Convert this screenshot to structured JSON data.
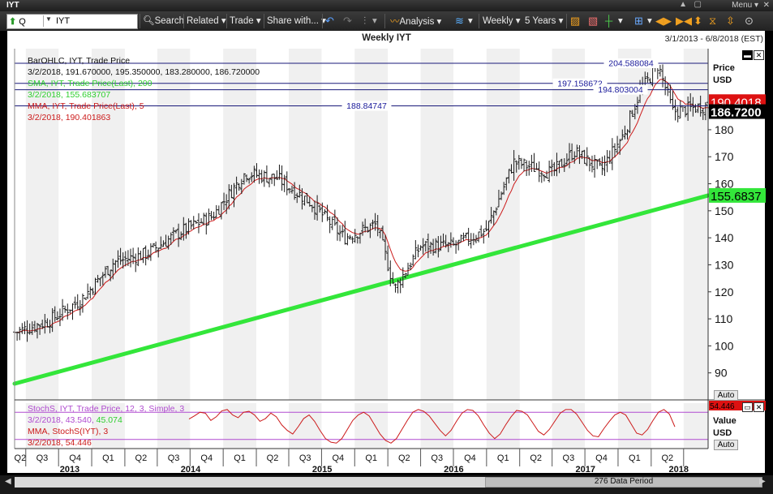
{
  "window": {
    "title": "IYT",
    "menu_label": "Menu"
  },
  "toolbar": {
    "symbol_type": "Q",
    "symbol_value": "IYT",
    "search_label": "Search",
    "related_label": "Related",
    "trade_label": "Trade",
    "share_label": "Share with...",
    "analysis_label": "Analysis",
    "frequency_label": "Weekly",
    "range_label": "5 Years"
  },
  "chart_header": {
    "title": "Weekly IYT",
    "date_range": "3/1/2013 - 6/8/2018 (EST)"
  },
  "legend": {
    "bar_title": "BarOHLC, IYT, Trade Price",
    "bar_values": "3/2/2018, 191.670000, 195.350000, 183.280000, 186.720000",
    "sma_title": "SMA, IYT, Trade Price(Last), 200",
    "sma_value": "3/2/2018, 155.683707",
    "mma_title": "MMA, IYT, Trade Price(Last), 5",
    "mma_value": "3/2/2018, 190.401863",
    "stoch_title": "StochS, IYT, Trade Price, 12, 3, Simple, 3",
    "stoch_value_a": "3/2/2018, 43.540,",
    "stoch_value_b": "45.074",
    "smma_title": "MMA, StochS(IYT), 3",
    "smma_value": "3/2/2018, 54.446"
  },
  "price_axis": {
    "title_1": "Price",
    "title_2": "USD",
    "auto_label": "Auto"
  },
  "value_axis": {
    "title_1": "Value",
    "title_2": "USD",
    "auto_label": "Auto"
  },
  "footer": {
    "data_period": "276 Data Period"
  },
  "colors": {
    "bars": "#1a1a1a",
    "sma": "#33e63a",
    "mma": "#cc1a1a",
    "stoch": "#cc1a1a",
    "stoch_band": "#b04bd0",
    "ref_line": "#1a1a7a",
    "ref_label": "#1a1a9a",
    "sma_tag": "#33e63a",
    "mma_tag": "#dd1111",
    "last_tag": "#000000",
    "stoch_tag": "#dd1111"
  },
  "chart_data": [
    {
      "type": "ohlc",
      "x_start": "2013-03-01",
      "x_end": "2018-06-08",
      "frequency": "weekly",
      "ylim": [
        80,
        210
      ],
      "yticks": [
        90,
        100,
        110,
        120,
        130,
        140,
        150,
        160,
        170,
        180
      ],
      "quarter_labels": [
        "Q2",
        "Q3",
        "Q4",
        "Q1",
        "Q2",
        "Q3",
        "Q4",
        "Q1",
        "Q2",
        "Q3",
        "Q4",
        "Q1",
        "Q2",
        "Q3",
        "Q4",
        "Q1",
        "Q2",
        "Q3",
        "Q4",
        "Q1",
        "Q2"
      ],
      "year_labels": [
        "2013",
        "2014",
        "2015",
        "2016",
        "2017",
        "2018"
      ],
      "close_path": [
        {
          "x": "2013-03-01",
          "y": 105
        },
        {
          "x": "2013-06-01",
          "y": 109
        },
        {
          "x": "2013-09-01",
          "y": 117
        },
        {
          "x": "2013-12-01",
          "y": 131
        },
        {
          "x": "2014-03-01",
          "y": 134
        },
        {
          "x": "2014-06-01",
          "y": 142
        },
        {
          "x": "2014-09-01",
          "y": 148
        },
        {
          "x": "2014-12-01",
          "y": 164
        },
        {
          "x": "2015-03-01",
          "y": 162
        },
        {
          "x": "2015-06-01",
          "y": 153
        },
        {
          "x": "2015-09-01",
          "y": 140
        },
        {
          "x": "2015-12-01",
          "y": 145
        },
        {
          "x": "2016-01-20",
          "y": 121
        },
        {
          "x": "2016-04-01",
          "y": 137
        },
        {
          "x": "2016-07-01",
          "y": 137
        },
        {
          "x": "2016-10-01",
          "y": 143
        },
        {
          "x": "2016-12-15",
          "y": 168
        },
        {
          "x": "2017-04-01",
          "y": 164
        },
        {
          "x": "2017-06-01",
          "y": 172
        },
        {
          "x": "2017-08-15",
          "y": 165
        },
        {
          "x": "2017-10-15",
          "y": 178
        },
        {
          "x": "2017-12-01",
          "y": 194
        },
        {
          "x": "2018-01-20",
          "y": 204
        },
        {
          "x": "2018-03-02",
          "y": 186.72
        },
        {
          "x": "2018-06-08",
          "y": 189
        }
      ],
      "series": [
        {
          "name": "BarOHLC, IYT, Trade Price",
          "last": {
            "date": "2018-03-02",
            "open": 191.67,
            "high": 195.35,
            "low": 183.28,
            "close": 186.72
          }
        },
        {
          "name": "SMA, IYT, Trade Price(Last), 200",
          "values": [
            {
              "x": "2013-03-01",
              "y": 86
            },
            {
              "x": "2018-06-08",
              "y": 155.68
            }
          ],
          "last": 155.683707
        },
        {
          "name": "MMA, IYT, Trade Price(Last), 5",
          "last": 190.401863
        }
      ],
      "reference_lines": [
        {
          "value": 204.588084,
          "label": "204.588084"
        },
        {
          "value": 197.158672,
          "label": "197.158672"
        },
        {
          "value": 194.803004,
          "label": "194.803004"
        },
        {
          "value": 188.84747,
          "label": "188.84747"
        }
      ],
      "axis_tags": [
        {
          "label": "190.4018",
          "value": 190.4018
        },
        {
          "label": "186.7200",
          "value": 186.72
        },
        {
          "label": "155.6837",
          "value": 155.6837
        }
      ],
      "grid": true
    },
    {
      "type": "line",
      "title": "StochS, IYT, Trade Price, 12, 3, Simple, 3",
      "ylim": [
        0,
        100
      ],
      "bands": [
        80,
        20
      ],
      "values": [
        65,
        72,
        80,
        78,
        62,
        70,
        83,
        86,
        74,
        68,
        80,
        82,
        74,
        60,
        66,
        78,
        70,
        52,
        40,
        32,
        48,
        66,
        74,
        60,
        40,
        22,
        14,
        12,
        22,
        42,
        62,
        74,
        80,
        72,
        52,
        32,
        18,
        12,
        22,
        42,
        62,
        80,
        86,
        82,
        72,
        56,
        40,
        28,
        40,
        60,
        78,
        86,
        84,
        72,
        52,
        34,
        22,
        32,
        52,
        70,
        84,
        82,
        74,
        56,
        38,
        30,
        42,
        60,
        78,
        86,
        86,
        76,
        58,
        40,
        28,
        26,
        44,
        60,
        74,
        80,
        74,
        54,
        34,
        30,
        42,
        62,
        80,
        86,
        76,
        48
      ],
      "last": {
        "x": "2018-03-02",
        "k": 43.54,
        "d": 45.074
      },
      "axis_tags": [
        {
          "label": "54.446",
          "value": 54.446
        }
      ]
    }
  ]
}
